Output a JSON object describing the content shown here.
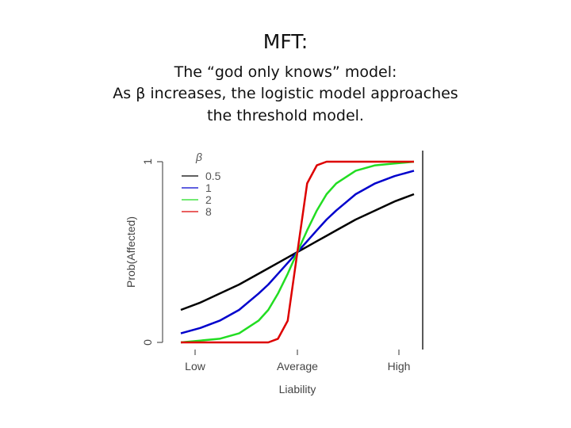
{
  "slide": {
    "title": "MFT:",
    "line1": "The “god only knows” model:",
    "line2": "As β increases, the logistic model approaches",
    "line3": "the threshold model."
  },
  "chart_data": {
    "type": "line",
    "xlabel": "Liability",
    "ylabel": "Prob(Affected)",
    "x_tick_labels": [
      "Low",
      "Average",
      "High"
    ],
    "y_tick_labels": [
      "0",
      "1"
    ],
    "ylim": [
      0,
      1
    ],
    "legend_title": "β",
    "legend_position": "top-left",
    "x": [
      -3,
      -2.5,
      -2,
      -1.5,
      -1,
      -0.75,
      -0.5,
      -0.25,
      0,
      0.25,
      0.5,
      0.75,
      1,
      1.5,
      2,
      2.5,
      3
    ],
    "series": [
      {
        "name": "0.5",
        "color": "#000000",
        "values": [
          0.18,
          0.22,
          0.27,
          0.32,
          0.38,
          0.41,
          0.44,
          0.47,
          0.5,
          0.53,
          0.56,
          0.59,
          0.62,
          0.68,
          0.73,
          0.78,
          0.82
        ]
      },
      {
        "name": "1",
        "color": "#0000cc",
        "values": [
          0.05,
          0.08,
          0.12,
          0.18,
          0.27,
          0.32,
          0.38,
          0.44,
          0.5,
          0.56,
          0.62,
          0.68,
          0.73,
          0.82,
          0.88,
          0.92,
          0.95
        ]
      },
      {
        "name": "2",
        "color": "#22dd22",
        "values": [
          0.0,
          0.01,
          0.02,
          0.05,
          0.12,
          0.18,
          0.27,
          0.38,
          0.5,
          0.62,
          0.73,
          0.82,
          0.88,
          0.95,
          0.98,
          0.99,
          1.0
        ]
      },
      {
        "name": "8",
        "color": "#dd0000",
        "values": [
          0.0,
          0.0,
          0.0,
          0.0,
          0.0,
          0.0,
          0.02,
          0.12,
          0.5,
          0.88,
          0.98,
          1.0,
          1.0,
          1.0,
          1.0,
          1.0,
          1.0
        ]
      }
    ]
  }
}
